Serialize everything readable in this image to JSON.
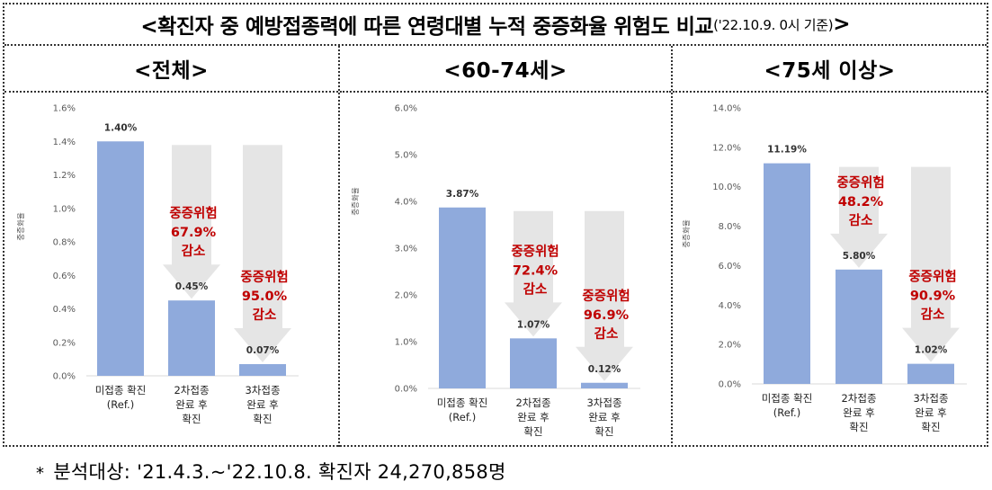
{
  "title": {
    "main": "<확진자 중 예방접종력에 따른 연령대별 누적 중증화율 위험도 비교",
    "sub": "('22.10.9. 0시 기준)",
    "end": ">"
  },
  "footnote": {
    "marker": "*",
    "text": "분석대상: '21.4.3.~'22.10.8. 확진자 24,270,858명"
  },
  "colors": {
    "bar": "#8faadc",
    "arrow": "#e5e5e5",
    "risk_text": "#c00000",
    "axis_text": "#595959"
  },
  "panels": [
    {
      "header": "<전체>",
      "ylabel": "중증화율"
    },
    {
      "header": "<60-74세>",
      "ylabel": "중증화율"
    },
    {
      "header": "<75세 이상>",
      "ylabel": "중증화율"
    }
  ],
  "chart_data": [
    {
      "type": "bar",
      "title": "<전체>",
      "ylabel": "중증화율",
      "ylim": [
        0,
        1.6
      ],
      "yticks": [
        "0.0%",
        "0.2%",
        "0.4%",
        "0.6%",
        "0.8%",
        "1.0%",
        "1.2%",
        "1.4%",
        "1.6%"
      ],
      "categories": [
        [
          "미접종 확진",
          "(Ref.)"
        ],
        [
          "2차접종",
          "완료 후",
          "확진"
        ],
        [
          "3차접종",
          "완료 후",
          "확진"
        ]
      ],
      "values": [
        1.4,
        0.45,
        0.07
      ],
      "data_labels": [
        "1.40%",
        "0.45%",
        "0.07%"
      ],
      "risk_labels": [
        null,
        [
          "중증위험",
          "67.9%",
          "감소"
        ],
        [
          "중증위험",
          "95.0%",
          "감소"
        ]
      ]
    },
    {
      "type": "bar",
      "title": "<60-74세>",
      "ylabel": "중증화율",
      "ylim": [
        0,
        6.0
      ],
      "yticks": [
        "0.0%",
        "1.0%",
        "2.0%",
        "3.0%",
        "4.0%",
        "5.0%",
        "6.0%"
      ],
      "categories": [
        [
          "미접종 확진",
          "(Ref.)"
        ],
        [
          "2차접종",
          "완료 후",
          "확진"
        ],
        [
          "3차접종",
          "완료 후",
          "확진"
        ]
      ],
      "values": [
        3.87,
        1.07,
        0.12
      ],
      "data_labels": [
        "3.87%",
        "1.07%",
        "0.12%"
      ],
      "risk_labels": [
        null,
        [
          "중증위험",
          "72.4%",
          "감소"
        ],
        [
          "중증위험",
          "96.9%",
          "감소"
        ]
      ]
    },
    {
      "type": "bar",
      "title": "<75세 이상>",
      "ylabel": "중증화율",
      "ylim": [
        0,
        14.0
      ],
      "yticks": [
        "0.0%",
        "2.0%",
        "4.0%",
        "6.0%",
        "8.0%",
        "10.0%",
        "12.0%",
        "14.0%"
      ],
      "categories": [
        [
          "미접종 확진",
          "(Ref.)"
        ],
        [
          "2차접종",
          "완료 후",
          "확진"
        ],
        [
          "3차접종",
          "완료 후",
          "확진"
        ]
      ],
      "values": [
        11.19,
        5.8,
        1.02
      ],
      "data_labels": [
        "11.19%",
        "5.80%",
        "1.02%"
      ],
      "risk_labels": [
        null,
        [
          "중증위험",
          "48.2%",
          "감소"
        ],
        [
          "중증위험",
          "90.9%",
          "감소"
        ]
      ]
    }
  ]
}
